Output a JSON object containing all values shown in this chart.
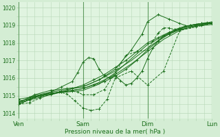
{
  "xlabel": "Pression niveau de la mer( hPa )",
  "bg_color": "#d4edd4",
  "plot_bg_color": "#e0f4e0",
  "grid_color": "#b8d8b8",
  "line_color": "#1a6e1a",
  "ylim": [
    1013.7,
    1020.3
  ],
  "xlim": [
    0,
    72
  ],
  "yticks": [
    1014,
    1015,
    1016,
    1017,
    1018,
    1019,
    1020
  ],
  "xtick_positions": [
    0,
    24,
    48,
    72
  ],
  "xtick_labels": [
    "Ven",
    "Sam",
    "Dim",
    "Lun"
  ],
  "series": [
    {
      "x": [
        0,
        4,
        8,
        12,
        16,
        20,
        24,
        28,
        32,
        36,
        40,
        44,
        48,
        52,
        56,
        60,
        64,
        68,
        72
      ],
      "y": [
        1014.6,
        1014.75,
        1014.9,
        1015.05,
        1015.2,
        1015.4,
        1015.6,
        1015.9,
        1016.2,
        1016.6,
        1017.0,
        1017.5,
        1018.0,
        1018.3,
        1018.6,
        1018.8,
        1019.0,
        1019.1,
        1019.1
      ],
      "style": "-",
      "marker": "+"
    },
    {
      "x": [
        0,
        4,
        8,
        12,
        16,
        20,
        24,
        28,
        32,
        36,
        40,
        44,
        48,
        52,
        56,
        60,
        64,
        68,
        72
      ],
      "y": [
        1014.8,
        1014.9,
        1015.0,
        1015.1,
        1015.2,
        1015.3,
        1015.4,
        1015.6,
        1015.8,
        1016.1,
        1016.5,
        1017.0,
        1017.6,
        1018.1,
        1018.5,
        1018.8,
        1019.0,
        1019.1,
        1019.1
      ],
      "style": "-",
      "marker": "+"
    },
    {
      "x": [
        0,
        6,
        12,
        15,
        18,
        21,
        24,
        27,
        30,
        33,
        36,
        42,
        48,
        54,
        60,
        66,
        72
      ],
      "y": [
        1014.5,
        1014.9,
        1015.1,
        1015.2,
        1015.1,
        1014.7,
        1014.3,
        1014.15,
        1014.25,
        1014.8,
        1016.0,
        1016.4,
        1015.6,
        1016.4,
        1018.7,
        1018.9,
        1019.1
      ],
      "style": "--",
      "marker": "+"
    },
    {
      "x": [
        0,
        6,
        12,
        18,
        24,
        30,
        36,
        42,
        46,
        48,
        52,
        56,
        60,
        64,
        68,
        72
      ],
      "y": [
        1014.6,
        1015.05,
        1015.3,
        1015.4,
        1015.5,
        1015.9,
        1016.5,
        1017.6,
        1018.5,
        1019.2,
        1019.6,
        1019.35,
        1019.1,
        1018.9,
        1019.0,
        1019.15
      ],
      "style": "-",
      "marker": "+"
    },
    {
      "x": [
        0,
        6,
        12,
        18,
        24,
        30,
        36,
        42,
        48,
        54,
        60,
        66,
        72
      ],
      "y": [
        1014.5,
        1014.95,
        1015.15,
        1015.2,
        1015.3,
        1015.65,
        1016.3,
        1017.1,
        1017.9,
        1018.4,
        1018.8,
        1019.05,
        1019.15
      ],
      "style": "-",
      "marker": null
    },
    {
      "x": [
        0,
        6,
        12,
        18,
        24,
        30,
        36,
        42,
        48,
        54,
        60,
        66,
        72
      ],
      "y": [
        1014.5,
        1014.9,
        1015.1,
        1015.25,
        1015.4,
        1015.75,
        1016.2,
        1016.8,
        1017.5,
        1018.2,
        1018.7,
        1019.0,
        1019.2
      ],
      "style": "-",
      "marker": null
    },
    {
      "x": [
        0,
        6,
        12,
        18,
        24,
        30,
        36,
        42,
        48,
        54,
        60,
        66,
        72
      ],
      "y": [
        1014.6,
        1015.0,
        1015.2,
        1015.35,
        1015.5,
        1015.9,
        1016.4,
        1017.0,
        1017.7,
        1018.35,
        1018.75,
        1018.95,
        1019.05
      ],
      "style": "-",
      "marker": null
    },
    {
      "x": [
        0,
        4,
        8,
        12,
        16,
        20,
        22,
        24,
        26,
        28,
        30,
        32,
        34,
        36,
        38,
        40,
        42,
        44,
        46,
        48,
        50,
        52,
        54,
        56,
        58,
        60,
        62,
        64,
        66,
        68,
        70,
        72
      ],
      "y": [
        1014.7,
        1014.8,
        1015.0,
        1015.2,
        1015.5,
        1015.8,
        1016.3,
        1016.9,
        1017.15,
        1017.1,
        1016.5,
        1016.1,
        1016.0,
        1016.15,
        1015.85,
        1015.6,
        1015.7,
        1016.0,
        1016.4,
        1017.1,
        1017.7,
        1018.1,
        1018.4,
        1018.55,
        1018.75,
        1018.85,
        1018.95,
        1019.0,
        1019.05,
        1019.1,
        1019.15,
        1019.1
      ],
      "style": "-",
      "marker": "+"
    },
    {
      "x": [
        0,
        4,
        8,
        12,
        16,
        20,
        22,
        24,
        28,
        32,
        36,
        40,
        44,
        48,
        50,
        52,
        54,
        56,
        58,
        60,
        64,
        68,
        72
      ],
      "y": [
        1014.5,
        1014.6,
        1014.85,
        1015.1,
        1015.25,
        1015.25,
        1015.2,
        1015.05,
        1015.05,
        1015.35,
        1016.3,
        1017.3,
        1017.5,
        1017.6,
        1018.1,
        1018.55,
        1018.85,
        1018.85,
        1018.75,
        1018.75,
        1018.9,
        1019.05,
        1019.1
      ],
      "style": "--",
      "marker": "+"
    }
  ]
}
